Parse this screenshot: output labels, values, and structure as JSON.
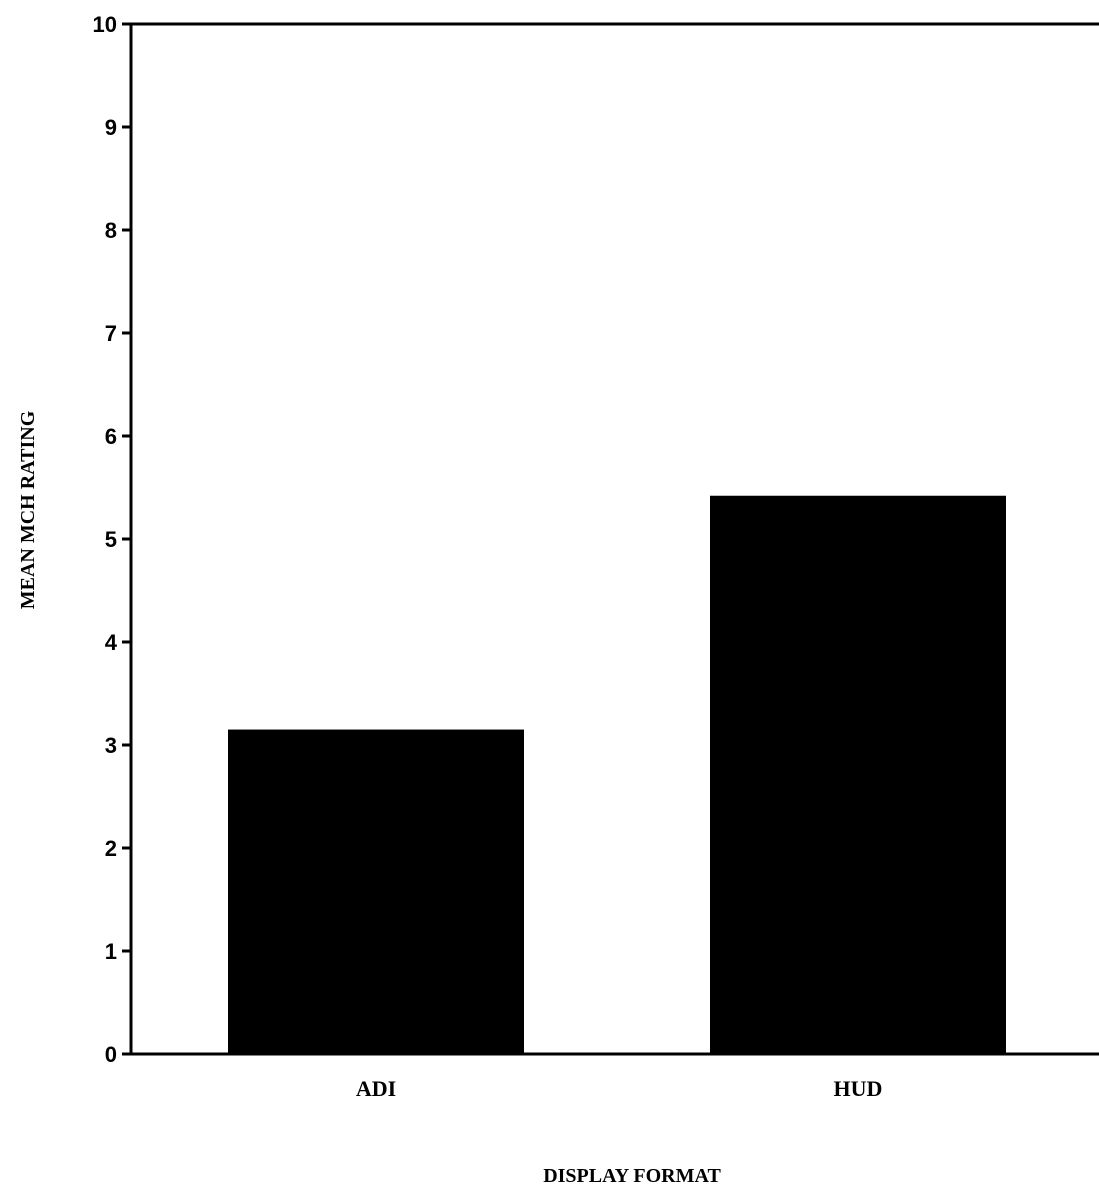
{
  "chart_data": {
    "type": "bar",
    "categories": [
      "ADI",
      "HUD"
    ],
    "values": [
      3.15,
      5.42
    ],
    "xlabel": "DISPLAY FORMAT",
    "ylabel": "MEAN MCH RATING",
    "ylim": [
      0,
      10
    ],
    "yticks": [
      "0",
      "1",
      "2",
      "3",
      "4",
      "5",
      "6",
      "7",
      "8",
      "9",
      "10"
    ],
    "grid": false,
    "legend": "none",
    "bar_color": "#000000"
  }
}
